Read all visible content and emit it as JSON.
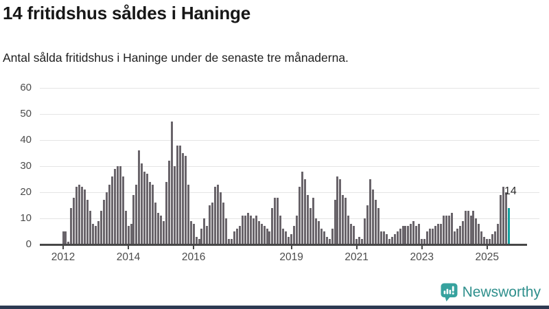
{
  "chart_data": {
    "type": "bar",
    "title": "14 fritidshus såldes i Haninge",
    "subtitle": "Antal sålda fritidshus i Haninge under de senaste tre månaderna.",
    "ylabel": "",
    "xlabel": "",
    "ylim": [
      0,
      60
    ],
    "grid": true,
    "y_axis": {
      "ticks": [
        0,
        10,
        20,
        30,
        40,
        50,
        60
      ]
    },
    "x_axis": {
      "tick_years": [
        2012,
        2014,
        2016,
        2019,
        2021,
        2023,
        2025
      ]
    },
    "series": [
      {
        "year": 2012,
        "values": [
          5,
          5,
          1,
          14,
          18,
          22,
          23,
          22,
          21,
          17,
          13,
          8
        ]
      },
      {
        "year": 2013,
        "values": [
          7,
          9,
          13,
          17,
          20,
          23,
          26,
          29,
          30,
          30,
          26,
          13
        ]
      },
      {
        "year": 2014,
        "values": [
          7,
          8,
          19,
          23,
          36,
          31,
          28,
          27,
          24,
          23,
          16,
          12
        ]
      },
      {
        "year": 2015,
        "values": [
          11,
          9,
          24,
          32,
          47,
          30,
          38,
          38,
          35,
          34,
          23,
          9
        ]
      },
      {
        "year": 2016,
        "values": [
          8,
          3,
          2,
          6,
          10,
          7,
          15,
          16,
          22,
          23,
          20,
          16
        ]
      },
      {
        "year": 2017,
        "values": [
          10,
          2,
          2,
          5,
          6,
          7,
          11,
          11,
          12,
          11,
          10,
          11
        ]
      },
      {
        "year": 2018,
        "values": [
          9,
          8,
          7,
          6,
          5,
          14,
          18,
          18,
          11,
          6,
          5,
          3
        ]
      },
      {
        "year": 2019,
        "values": [
          4,
          7,
          11,
          22,
          28,
          25,
          19,
          14,
          18,
          10,
          9,
          6
        ]
      },
      {
        "year": 2020,
        "values": [
          5,
          3,
          2,
          6,
          17,
          26,
          25,
          19,
          18,
          11,
          8,
          7
        ]
      },
      {
        "year": 2021,
        "values": [
          2,
          3,
          2,
          10,
          15,
          25,
          21,
          17,
          14,
          5,
          5,
          4
        ]
      },
      {
        "year": 2022,
        "values": [
          2,
          3,
          4,
          5,
          6,
          7,
          7,
          7,
          8,
          9,
          7,
          8
        ]
      },
      {
        "year": 2023,
        "values": [
          2,
          2,
          5,
          6,
          6,
          7,
          8,
          8,
          11,
          11,
          11,
          12
        ]
      },
      {
        "year": 2024,
        "values": [
          5,
          6,
          7,
          9,
          13,
          13,
          11,
          13,
          10,
          8,
          5,
          3
        ]
      },
      {
        "year": 2025,
        "values": [
          2,
          2,
          4,
          5,
          8,
          19,
          22,
          20,
          14
        ]
      }
    ],
    "highlight": {
      "position": "last",
      "value": 14,
      "label": "14"
    },
    "colors": {
      "bar": "#69646a",
      "highlight_bar": "#12a2a0",
      "axis": "#474747",
      "grid": "#e4e4e4",
      "tick_text": "#4b4b4b"
    }
  },
  "branding": {
    "logo_text": "Newsworthy",
    "logo_icon": "speech-bubble-bar-chart-icon",
    "text_color": "#2e8f8c",
    "icon_color": "#36a29e",
    "footer_bar_color": "#2d3a52"
  }
}
